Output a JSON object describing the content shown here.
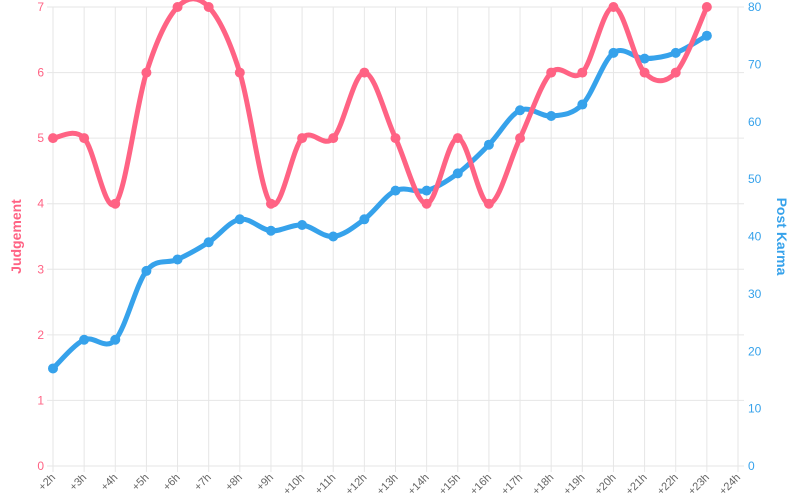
{
  "chart_data": {
    "type": "line",
    "categories": [
      "+2h",
      "+3h",
      "+4h",
      "+5h",
      "+6h",
      "+7h",
      "+8h",
      "+9h",
      "+10h",
      "+11h",
      "+12h",
      "+13h",
      "+14h",
      "+15h",
      "+16h",
      "+17h",
      "+18h",
      "+19h",
      "+20h",
      "+21h",
      "+22h",
      "+23h",
      "+24h"
    ],
    "series": [
      {
        "name": "Judgement",
        "axis": "left",
        "color": "#ff6384",
        "values": [
          5,
          5,
          4,
          6,
          7,
          7,
          6,
          4,
          5,
          5,
          6,
          5,
          4,
          5,
          4,
          5,
          6,
          6,
          7,
          6,
          6,
          7,
          null
        ]
      },
      {
        "name": "Post Karma",
        "axis": "right",
        "color": "#36a2eb",
        "values": [
          17,
          22,
          22,
          34,
          36,
          39,
          43,
          41,
          42,
          40,
          43,
          48,
          48,
          51,
          56,
          62,
          61,
          63,
          72,
          71,
          72,
          75,
          null
        ]
      }
    ],
    "y_left": {
      "label": "Judgement",
      "range": [
        0,
        7
      ],
      "ticks": [
        0,
        1,
        2,
        3,
        4,
        5,
        6,
        7
      ],
      "color": "#ff6384"
    },
    "y_right": {
      "label": "Post Karma",
      "range": [
        0,
        80
      ],
      "ticks": [
        0,
        10,
        20,
        30,
        40,
        50,
        60,
        70,
        80
      ],
      "color": "#36a2eb"
    },
    "grid": true,
    "legend": "none"
  }
}
